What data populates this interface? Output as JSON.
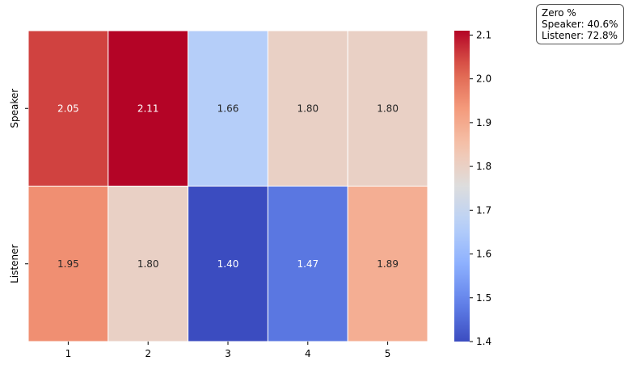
{
  "chart_data": {
    "type": "heatmap",
    "columns": [
      "1",
      "2",
      "3",
      "4",
      "5"
    ],
    "rows": [
      "Speaker",
      "Listener"
    ],
    "values": [
      [
        2.05,
        2.11,
        1.66,
        1.8,
        1.8
      ],
      [
        1.95,
        1.8,
        1.4,
        1.47,
        1.89
      ]
    ],
    "cell_labels": [
      [
        "2.05",
        "2.11",
        "1.66",
        "1.80",
        "1.80"
      ],
      [
        "1.95",
        "1.80",
        "1.40",
        "1.47",
        "1.89"
      ]
    ],
    "colormap": "coolwarm",
    "vmin": 1.4,
    "vmax": 2.11,
    "colorbar_ticks": [
      "1.4",
      "1.5",
      "1.6",
      "1.7",
      "1.8",
      "1.9",
      "2.0",
      "2.1"
    ]
  },
  "annotation": {
    "line1": "Zero %",
    "line2": "Speaker: 40.6%",
    "line3": "Listener: 72.8%"
  }
}
